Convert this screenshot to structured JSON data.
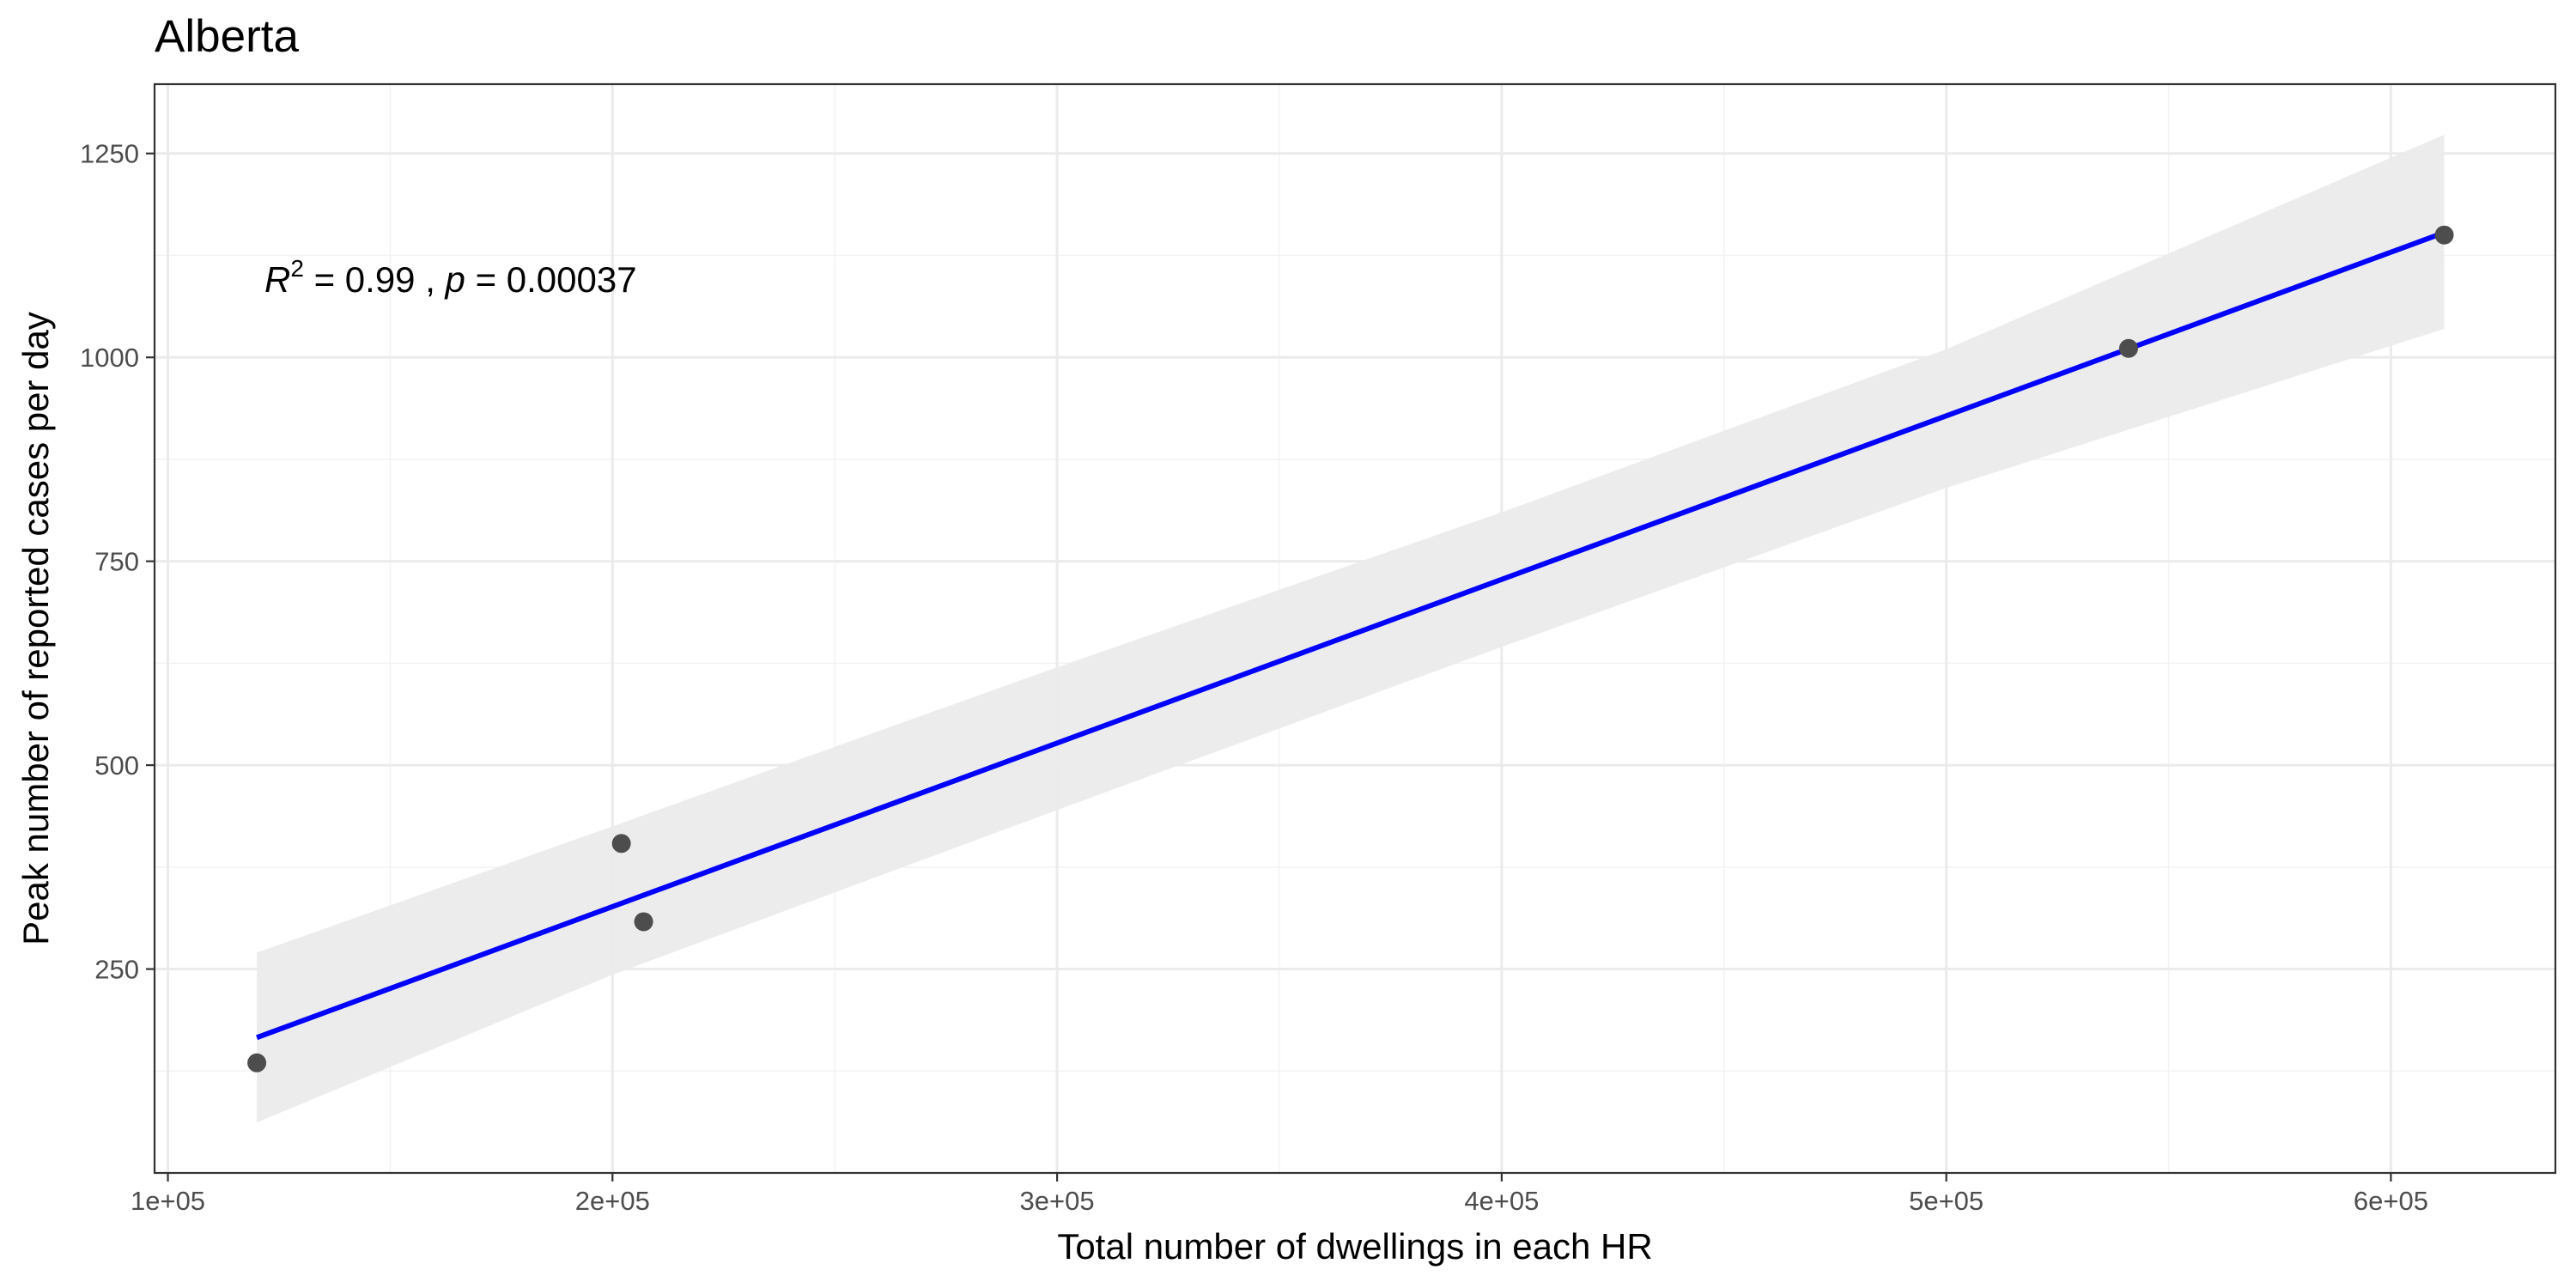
{
  "chart_data": {
    "type": "scatter",
    "title": "Alberta",
    "xlabel": "Total number of dwellings in each HR",
    "ylabel": "Peak number of reported cases per day",
    "xlim": [
      97000,
      637000
    ],
    "ylim": [
      0,
      1335
    ],
    "x_ticks": [
      100000,
      200000,
      300000,
      400000,
      500000,
      600000
    ],
    "x_tick_labels": [
      "1e+05",
      "2e+05",
      "3e+05",
      "4e+05",
      "5e+05",
      "6e+05"
    ],
    "y_ticks": [
      250,
      500,
      750,
      1000,
      1250
    ],
    "y_tick_labels": [
      "250",
      "500",
      "750",
      "1000",
      "1250"
    ],
    "grid": true,
    "points": [
      {
        "x": 120000,
        "y": 135
      },
      {
        "x": 202000,
        "y": 404
      },
      {
        "x": 207000,
        "y": 308
      },
      {
        "x": 541000,
        "y": 1011
      },
      {
        "x": 612000,
        "y": 1150
      }
    ],
    "fit_line": {
      "x": [
        120000,
        612000
      ],
      "y": [
        166,
        1153
      ],
      "color": "#0000ff"
    },
    "confidence_band": {
      "x": [
        120000,
        200000,
        300000,
        400000,
        500000,
        612000
      ],
      "lower": [
        62,
        243,
        445,
        645,
        840,
        1035
      ],
      "upper": [
        270,
        425,
        620,
        810,
        1010,
        1273
      ],
      "color": "#ebebeb"
    },
    "annotation": {
      "r_symbol": "R",
      "r_exponent": "2",
      "r_value": " = 0.99 , ",
      "p_symbol": "p",
      "p_value": " = 0.00037"
    },
    "point_color": "#4d4d4d"
  }
}
